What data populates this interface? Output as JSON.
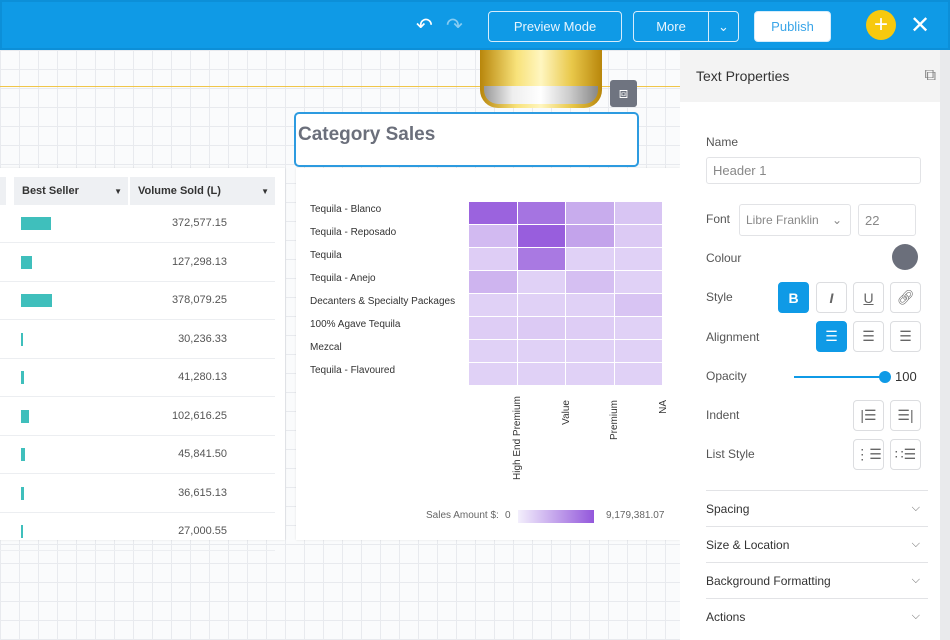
{
  "topbar": {
    "undo_icon": "undo-icon",
    "redo_icon": "redo-icon",
    "preview": "Preview Mode",
    "more": "More",
    "publish": "Publish",
    "accent": "#0f9ae6",
    "add_color": "#f7c90e"
  },
  "canvas": {
    "title": "Category Sales"
  },
  "table": {
    "headers": [
      "Best Seller",
      "Volume Sold (L)"
    ],
    "rows": [
      {
        "bar": 0.98,
        "value": "372,577.15"
      },
      {
        "bar": 0.34,
        "value": "127,298.13"
      },
      {
        "bar": 1.0,
        "value": "378,079.25"
      },
      {
        "bar": 0.08,
        "value": "30,236.33"
      },
      {
        "bar": 0.11,
        "value": "41,280.13"
      },
      {
        "bar": 0.27,
        "value": "102,616.25"
      },
      {
        "bar": 0.12,
        "value": "45,841.50"
      },
      {
        "bar": 0.1,
        "value": "36,615.13"
      },
      {
        "bar": 0.07,
        "value": "27,000.55"
      }
    ]
  },
  "chart_data": {
    "type": "heatmap",
    "rows": [
      "Tequila - Blanco",
      "Tequila - Reposado",
      "Tequila",
      "Tequila - Anejo",
      "Decanters & Specialty Packages",
      "100% Agave Tequila",
      "Mezcal",
      "Tequila - Flavoured"
    ],
    "columns": [
      "High End Premium",
      "Value",
      "Premium",
      "NA"
    ],
    "values": [
      [
        7800000,
        6000000,
        1800000,
        700000
      ],
      [
        1100000,
        8300000,
        2300000,
        550000
      ],
      [
        450000,
        5500000,
        350000,
        350000
      ],
      [
        1400000,
        350000,
        900000,
        350000
      ],
      [
        350000,
        350000,
        350000,
        750000
      ],
      [
        450000,
        550000,
        450000,
        350000
      ],
      [
        350000,
        350000,
        350000,
        350000
      ],
      [
        350000,
        350000,
        350000,
        350000
      ]
    ],
    "legend": {
      "label": "Sales Amount $:",
      "min": "0",
      "max": "9,179,381.07",
      "min_value": 0,
      "max_value": 9179381.07
    },
    "color_low": "#f3effc",
    "color_high": "#9357db"
  },
  "panel": {
    "title": "Text Properties",
    "name_label": "Name",
    "name_value": "Header 1",
    "font_label": "Font",
    "font_value": "Libre Franklin",
    "size_value": "22",
    "colour_label": "Colour",
    "colour": "#6b6f7b",
    "style_label": "Style",
    "bold": "B",
    "italic": "I",
    "underline": "U",
    "alignment_label": "Alignment",
    "opacity_label": "Opacity",
    "opacity": "100",
    "indent_label": "Indent",
    "list_label": "List Style",
    "sections": [
      "Spacing",
      "Size & Location",
      "Background Formatting",
      "Actions"
    ]
  }
}
